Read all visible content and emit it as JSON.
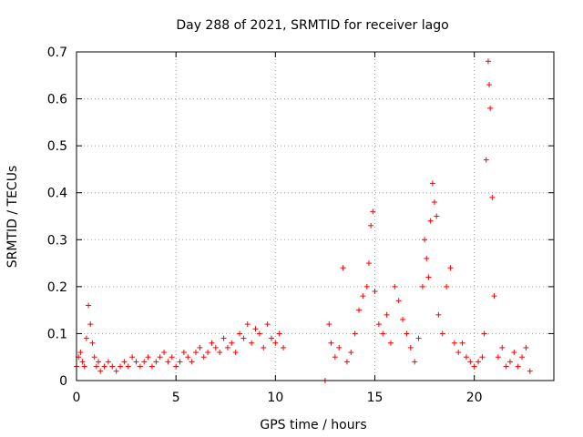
{
  "chart_data": {
    "type": "scatter",
    "title": "Day 288 of 2021, SRMTID for receiver lago",
    "xlabel": "GPS time / hours",
    "ylabel": "SRMTID / TECUs",
    "xlim": [
      0,
      24
    ],
    "ylim": [
      0,
      0.7
    ],
    "xticks": [
      0,
      5,
      10,
      15,
      20
    ],
    "xtick_labels": [
      "0",
      "5",
      "10",
      "15",
      "20"
    ],
    "yticks": [
      0,
      0.1,
      0.2,
      0.3,
      0.4,
      0.5,
      0.6,
      0.7
    ],
    "ytick_labels": [
      "0",
      "0.1",
      "0.2",
      "0.3",
      "0.4",
      "0.5",
      "0.6",
      "0.7"
    ],
    "grid": true,
    "marker": "+",
    "color": "#ff0000",
    "series": [
      {
        "name": "SRMTID",
        "x": [
          0.0,
          0.1,
          0.2,
          0.3,
          0.4,
          0.5,
          0.6,
          0.7,
          0.8,
          0.9,
          1.0,
          1.1,
          1.2,
          1.4,
          1.6,
          1.8,
          2.0,
          2.2,
          2.4,
          2.6,
          2.8,
          3.0,
          3.2,
          3.4,
          3.6,
          3.8,
          4.0,
          4.2,
          4.4,
          4.6,
          4.8,
          5.0,
          5.2,
          5.4,
          5.6,
          5.8,
          6.0,
          6.2,
          6.4,
          6.6,
          6.8,
          7.0,
          7.2,
          7.4,
          7.6,
          7.8,
          8.0,
          8.2,
          8.4,
          8.6,
          8.8,
          9.0,
          9.2,
          9.4,
          9.6,
          9.8,
          10.0,
          10.2,
          10.4,
          12.5,
          12.7,
          12.8,
          13.0,
          13.2,
          13.4,
          13.6,
          13.8,
          14.0,
          14.2,
          14.4,
          14.6,
          14.7,
          14.8,
          14.9,
          15.0,
          15.2,
          15.4,
          15.6,
          15.8,
          16.0,
          16.2,
          16.4,
          16.6,
          16.8,
          17.0,
          17.2,
          17.4,
          17.5,
          17.6,
          17.7,
          17.8,
          17.9,
          18.0,
          18.1,
          18.2,
          18.4,
          18.6,
          18.8,
          19.0,
          19.2,
          19.4,
          19.6,
          19.8,
          20.0,
          20.2,
          20.4,
          20.5,
          20.6,
          20.7,
          20.75,
          20.8,
          20.9,
          21.0,
          21.2,
          21.4,
          21.6,
          21.8,
          22.0,
          22.2,
          22.4,
          22.6,
          22.8
        ],
        "y": [
          0.03,
          0.05,
          0.06,
          0.04,
          0.03,
          0.09,
          0.16,
          0.12,
          0.08,
          0.05,
          0.03,
          0.04,
          0.02,
          0.03,
          0.04,
          0.03,
          0.02,
          0.03,
          0.04,
          0.03,
          0.05,
          0.04,
          0.03,
          0.04,
          0.05,
          0.03,
          0.04,
          0.05,
          0.06,
          0.04,
          0.05,
          0.03,
          0.04,
          0.06,
          0.05,
          0.04,
          0.06,
          0.07,
          0.05,
          0.06,
          0.08,
          0.07,
          0.06,
          0.09,
          0.07,
          0.08,
          0.06,
          0.1,
          0.09,
          0.12,
          0.08,
          0.11,
          0.1,
          0.07,
          0.12,
          0.09,
          0.08,
          0.1,
          0.07,
          0.0,
          0.12,
          0.08,
          0.05,
          0.07,
          0.24,
          0.04,
          0.06,
          0.1,
          0.15,
          0.18,
          0.2,
          0.25,
          0.33,
          0.36,
          0.19,
          0.12,
          0.1,
          0.14,
          0.08,
          0.2,
          0.17,
          0.13,
          0.1,
          0.07,
          0.04,
          0.09,
          0.2,
          0.3,
          0.26,
          0.22,
          0.34,
          0.42,
          0.38,
          0.35,
          0.14,
          0.1,
          0.2,
          0.24,
          0.08,
          0.06,
          0.08,
          0.05,
          0.04,
          0.03,
          0.04,
          0.05,
          0.1,
          0.47,
          0.68,
          0.63,
          0.58,
          0.39,
          0.18,
          0.05,
          0.07,
          0.03,
          0.04,
          0.06,
          0.03,
          0.05,
          0.07,
          0.02
        ]
      }
    ]
  }
}
